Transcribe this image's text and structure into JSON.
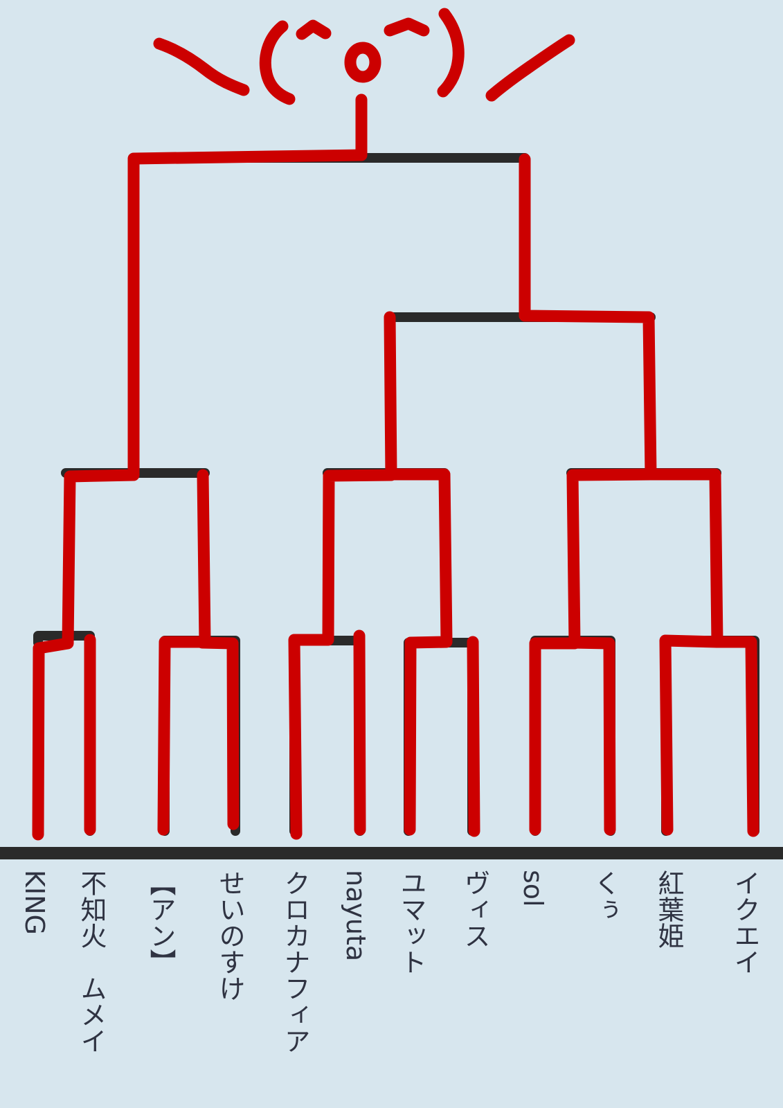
{
  "colors": {
    "background": "#d7e6ee",
    "bracket_line": "#2a2a2a",
    "winner_highlight": "#cc0000",
    "label_text": "#2f3342"
  },
  "header_doodle": {
    "icon": "hands-up-kaomoji-doodle",
    "kaomoji": "\\(^o^)/"
  },
  "participants": [
    "KING",
    "不知火　ムメイ",
    "【アン】",
    "せいのすけ",
    "クロカナフィア",
    "nayuta",
    "ユマット",
    "ヴィス",
    "sol",
    "くぅ",
    "紅葉姫",
    "イクエイ"
  ],
  "champion": "KING"
}
